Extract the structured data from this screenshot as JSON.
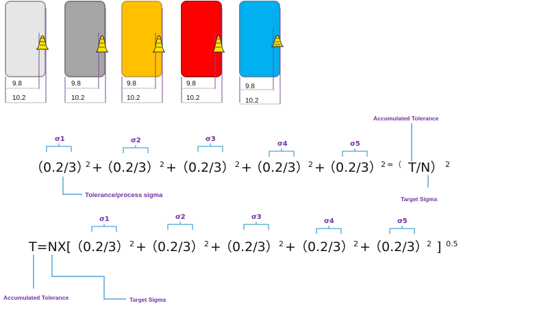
{
  "parts": [
    {
      "color": "#e6e6e6",
      "border": "#a0a0a0",
      "dim_inner": "9.8",
      "dim_outer": "10.2"
    },
    {
      "color": "#a6a6a6",
      "border": "#808080",
      "dim_inner": "9.8",
      "dim_outer": "10.2"
    },
    {
      "color": "#ffc000",
      "border": "#c9a54a",
      "dim_inner": "9.8",
      "dim_outer": "10.2"
    },
    {
      "color": "#ff0000",
      "border": "#b01414",
      "dim_inner": "9.8",
      "dim_outer": "10.2"
    },
    {
      "color": "#00b0f0",
      "border": "#3f8fb8",
      "dim_inner": "9.8",
      "dim_outer": "10.2"
    }
  ],
  "equation1": {
    "terms": [
      "（0.2/3）",
      "（0.2/3）",
      "（0.2/3）",
      "（0.2/3）",
      "（0.2/3）"
    ],
    "sigmas": [
      "σ1",
      "σ2",
      "σ3",
      "σ4",
      "σ5"
    ],
    "exponent": "2",
    "plus": "+",
    "equals": "=",
    "rhs_open": "（",
    "rhs": "T/N）",
    "rhs_exponent": "2",
    "label_accumulated": "Accumulated Tolerance",
    "label_tolerance": "Tolerance/process sigma",
    "label_target": "Target Sigma"
  },
  "equation2": {
    "lhs": "T=NX[",
    "terms": [
      "（0.2/3）",
      "（0.2/3）",
      "（0.2/3）",
      "（0.2/3）",
      "（0.2/3）"
    ],
    "sigmas": [
      "σ1",
      "σ2",
      "σ3",
      "σ4",
      "σ5"
    ],
    "exponent": "2",
    "plus": "+",
    "close": "]",
    "power": "0.5",
    "label_accumulated": "Accumulated Tolerance",
    "label_target": "Target Sigma"
  },
  "colors": {
    "annotation": "#7030a0",
    "bracket": "#4aa3d8",
    "dim_line": "#7a4a9a",
    "bell_fill": "#ffe600"
  }
}
